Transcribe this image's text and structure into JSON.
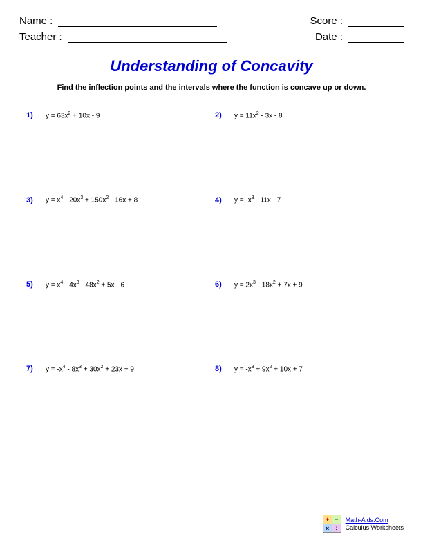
{
  "header": {
    "name_label": "Name :",
    "teacher_label": "Teacher :",
    "score_label": "Score :",
    "date_label": "Date :"
  },
  "title": "Understanding of Concavity",
  "instructions": "Find the inflection points and the intervals where the function is concave up or down.",
  "problems": [
    {
      "num": "1)",
      "html": "y = 63x<sup>2</sup> + 10x - 9"
    },
    {
      "num": "2)",
      "html": "y = 11x<sup>2</sup> - 3x - 8"
    },
    {
      "num": "3)",
      "html": "y = x<sup>4</sup> - 20x<sup>3</sup> + 150x<sup>2</sup> - 16x + 8"
    },
    {
      "num": "4)",
      "html": "y = -x<sup>3</sup> - 11x - 7"
    },
    {
      "num": "5)",
      "html": "y = x<sup>4</sup> - 4x<sup>3</sup> - 48x<sup>2</sup> + 5x - 6"
    },
    {
      "num": "6)",
      "html": "y = 2x<sup>3</sup> - 18x<sup>2</sup> + 7x + 9"
    },
    {
      "num": "7)",
      "html": "y = -x<sup>4</sup> - 8x<sup>3</sup> + 30x<sup>2</sup> + 23x + 9"
    },
    {
      "num": "8)",
      "html": "y = -x<sup>3</sup> + 9x<sup>2</sup> + 10x + 7"
    }
  ],
  "footer": {
    "site": "Math-Aids.Com",
    "subtitle": "Calculus Worksheets",
    "logo_symbols": [
      "+",
      "−",
      "×",
      "÷"
    ]
  },
  "colors": {
    "accent": "#0000d0",
    "text": "#000000",
    "background": "#ffffff"
  }
}
